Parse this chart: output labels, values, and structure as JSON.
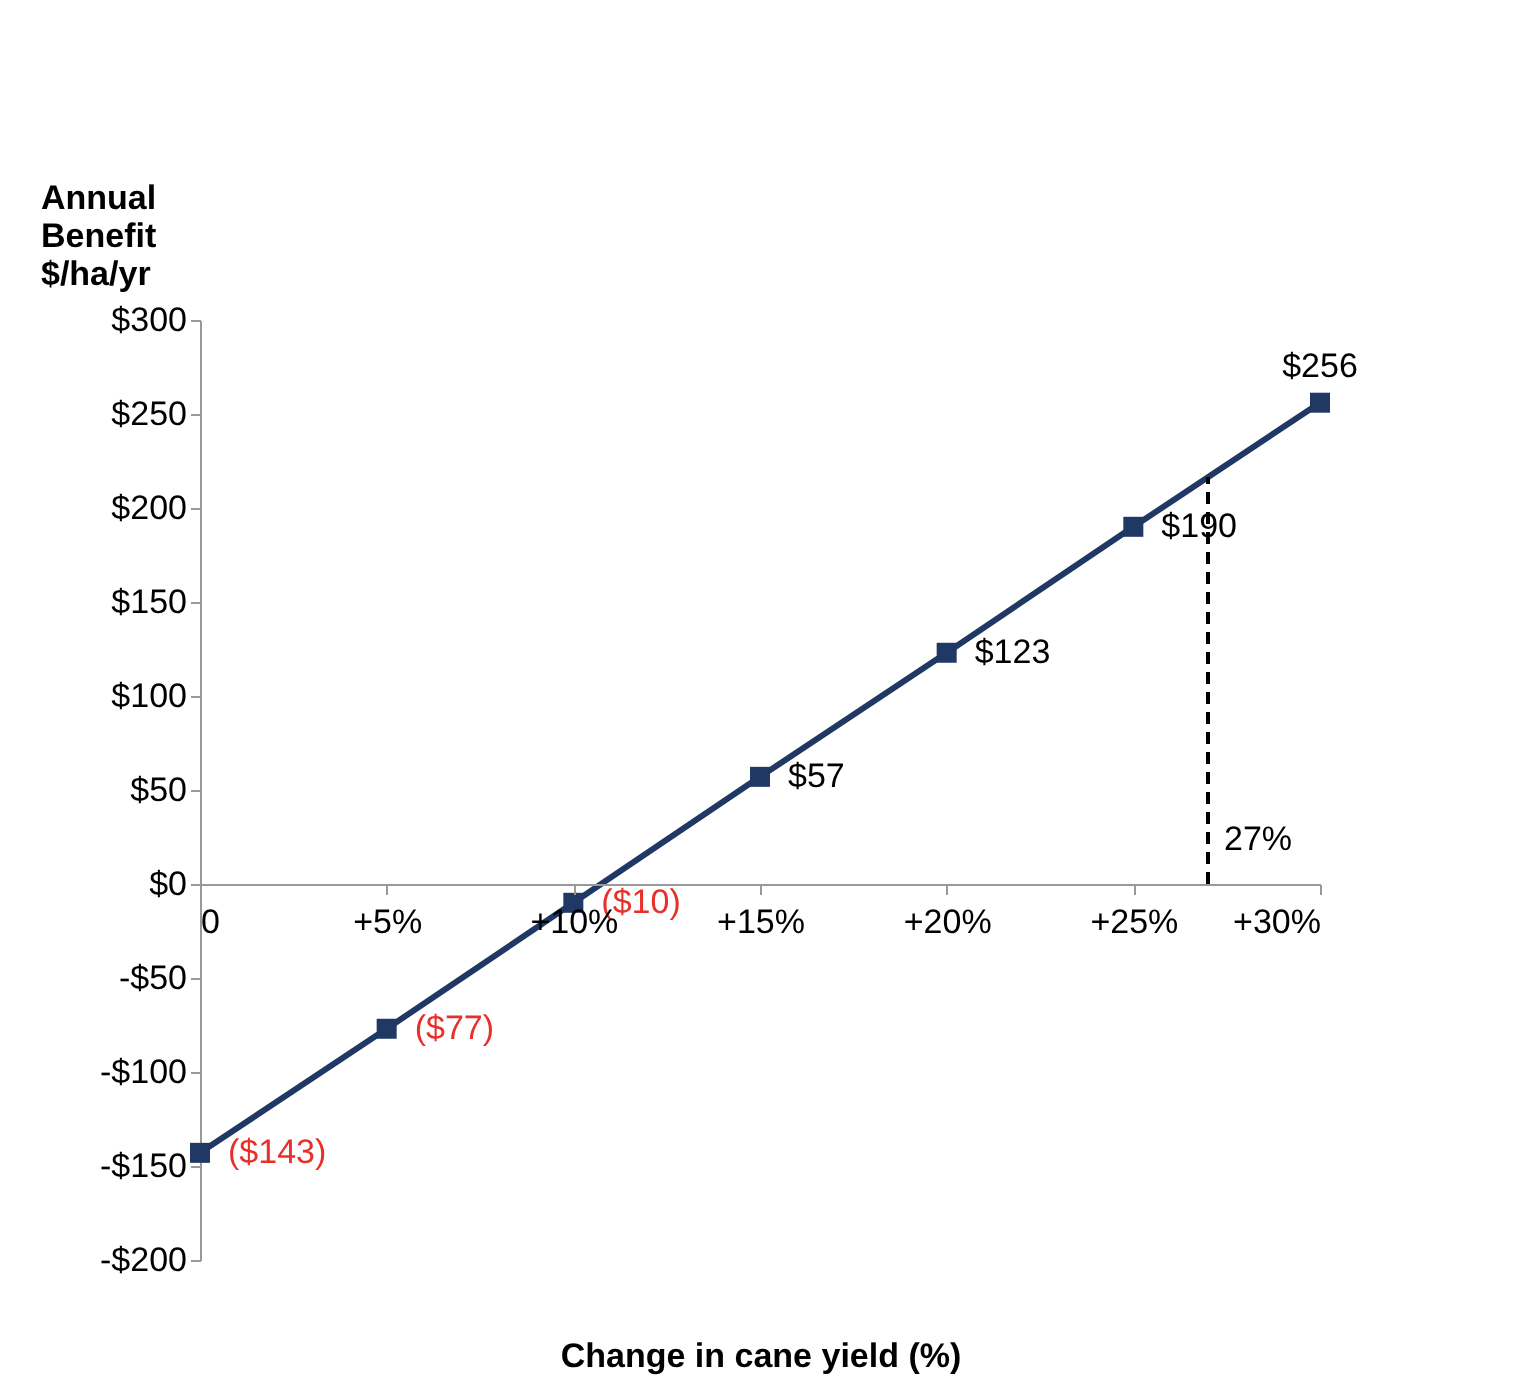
{
  "chart_data": {
    "type": "line",
    "ylabel": "Annual Benefit $/ha/yr",
    "xlabel": "Change in cane yield (%)",
    "x": [
      0,
      5,
      10,
      15,
      20,
      25,
      30
    ],
    "series": [
      {
        "color": "#1f3864",
        "values": [
          -143,
          -77,
          -10,
          57,
          123,
          190,
          256
        ],
        "value_labels": [
          "($143)",
          "($77)",
          "($10)",
          "$57",
          "$123",
          "$190",
          "$256"
        ]
      }
    ],
    "marker": "square",
    "line_style": "solid",
    "xlim": [
      0,
      30
    ],
    "xticks": [
      {
        "value": 0,
        "label": "0"
      },
      {
        "value": 5,
        "label": "+5%"
      },
      {
        "value": 10,
        "label": "+10%"
      },
      {
        "value": 15,
        "label": "+15%"
      },
      {
        "value": 20,
        "label": "+20%"
      },
      {
        "value": 25,
        "label": "+25%"
      },
      {
        "value": 30,
        "label": "+30%"
      }
    ],
    "ylim": [
      -200,
      300
    ],
    "yticks": [
      {
        "value": -200,
        "label": "-$200"
      },
      {
        "value": -150,
        "label": "-$150"
      },
      {
        "value": -100,
        "label": "-$100"
      },
      {
        "value": -50,
        "label": "-$50"
      },
      {
        "value": 0,
        "label": "$0"
      },
      {
        "value": 50,
        "label": "$50"
      },
      {
        "value": 100,
        "label": "$100"
      },
      {
        "value": 150,
        "label": "$150"
      },
      {
        "value": 200,
        "label": "$200"
      },
      {
        "value": 250,
        "label": "$250"
      },
      {
        "value": 300,
        "label": "$300"
      }
    ],
    "ref_lines": [
      {
        "axis": "x",
        "value": 27,
        "label": "27%",
        "color": "#000000",
        "line_style": "dashed"
      }
    ],
    "grid": false
  }
}
